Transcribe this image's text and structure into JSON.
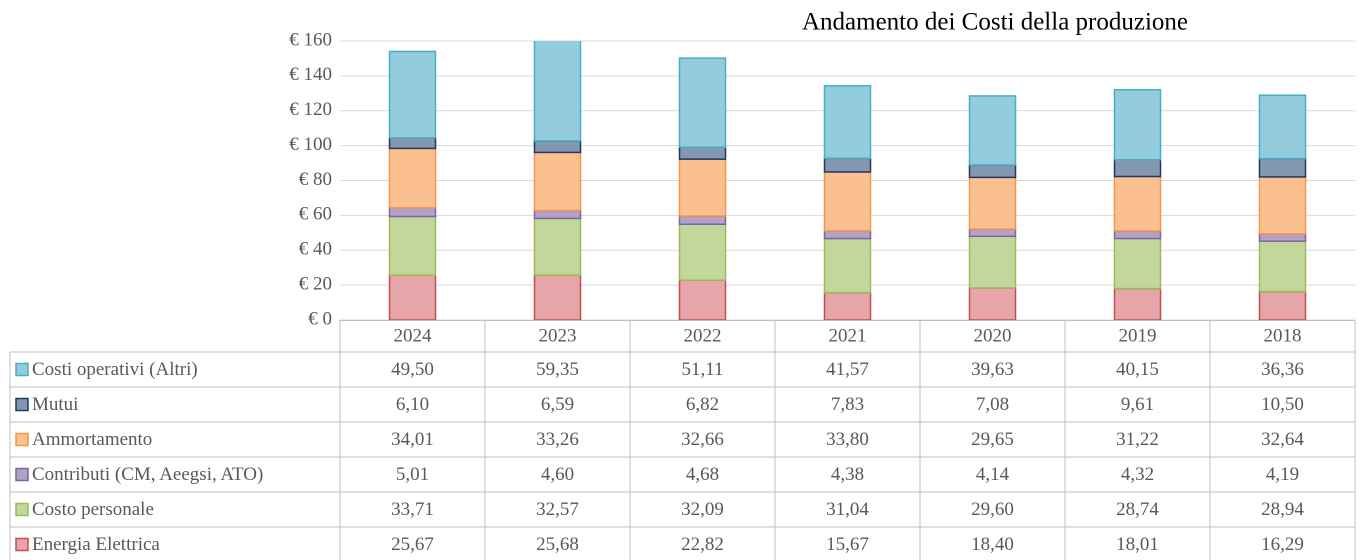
{
  "chart_data": {
    "type": "bar",
    "stacked": true,
    "title": "Andamento dei Costi della produzione",
    "categories": [
      "2024",
      "2023",
      "2022",
      "2021",
      "2020",
      "2019",
      "2018"
    ],
    "ylim": [
      0,
      160
    ],
    "yticks": [
      {
        "value": 0,
        "label": "€ 0"
      },
      {
        "value": 20,
        "label": "€ 20"
      },
      {
        "value": 40,
        "label": "€ 40"
      },
      {
        "value": 60,
        "label": "€ 60"
      },
      {
        "value": 80,
        "label": "€ 80"
      },
      {
        "value": 100,
        "label": "€ 100"
      },
      {
        "value": 120,
        "label": "€ 120"
      },
      {
        "value": 140,
        "label": "€ 140"
      },
      {
        "value": 160,
        "label": "€ 160"
      }
    ],
    "grid": true,
    "series": [
      {
        "name": "Costi operativi (Altri)",
        "color": "#93cddd",
        "border": "#4bacc6",
        "values": [
          49.5,
          59.35,
          51.11,
          41.57,
          39.63,
          40.15,
          36.36
        ],
        "value_labels": [
          "49,50",
          "59,35",
          "51,11",
          "41,57",
          "39,63",
          "40,15",
          "36,36"
        ]
      },
      {
        "name": "Mutui",
        "color": "#8497b0",
        "border": "#1f3864",
        "values": [
          6.1,
          6.59,
          6.82,
          7.83,
          7.08,
          9.61,
          10.5
        ],
        "value_labels": [
          "6,10",
          "6,59",
          "6,82",
          "7,83",
          "7,08",
          "9,61",
          "10,50"
        ]
      },
      {
        "name": "Ammortamento",
        "color": "#fac090",
        "border": "#f79646",
        "values": [
          34.01,
          33.26,
          32.66,
          33.8,
          29.65,
          31.22,
          32.64
        ],
        "value_labels": [
          "34,01",
          "33,26",
          "32,66",
          "33,80",
          "29,65",
          "31,22",
          "32,64"
        ]
      },
      {
        "name": "Contributi (CM, Aeegsi, ATO)",
        "color": "#b3a2c7",
        "border": "#8064a2",
        "values": [
          5.01,
          4.6,
          4.68,
          4.38,
          4.14,
          4.32,
          4.19
        ],
        "value_labels": [
          "5,01",
          "4,60",
          "4,68",
          "4,38",
          "4,14",
          "4,32",
          "4,19"
        ]
      },
      {
        "name": "Costo personale",
        "color": "#c3d69b",
        "border": "#9bbb59",
        "values": [
          33.71,
          32.57,
          32.09,
          31.04,
          29.6,
          28.74,
          28.94
        ],
        "value_labels": [
          "33,71",
          "32,57",
          "32,09",
          "31,04",
          "29,60",
          "28,74",
          "28,94"
        ]
      },
      {
        "name": "Energia Elettrica",
        "color": "#e6a5a8",
        "border": "#c0504d",
        "values": [
          25.67,
          25.68,
          22.82,
          15.67,
          18.4,
          18.01,
          16.29
        ],
        "value_labels": [
          "25,67",
          "25,68",
          "22,82",
          "15,67",
          "18,40",
          "18,01",
          "16,29"
        ]
      }
    ]
  }
}
